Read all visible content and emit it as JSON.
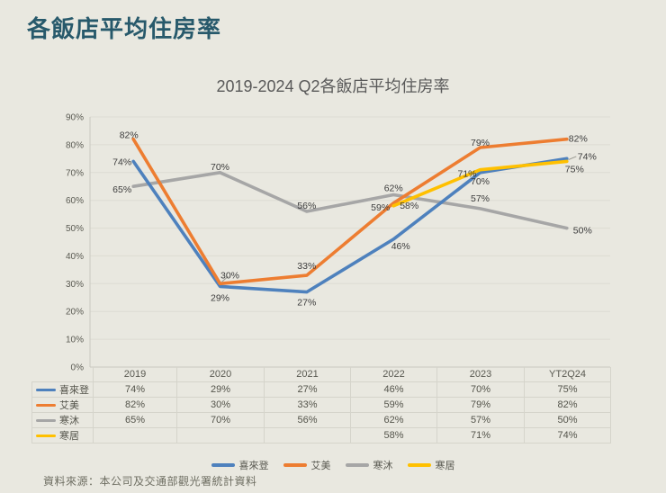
{
  "page": {
    "title": "各飯店平均住房率",
    "source": "資料來源：本公司及交通部觀光署統計資料"
  },
  "chart_data": {
    "type": "line",
    "title": "2019-2024 Q2各飯店平均住房率",
    "categories": [
      "2019",
      "2020",
      "2021",
      "2022",
      "2023",
      "YT2Q24"
    ],
    "series": [
      {
        "name": "喜來登",
        "color": "#4E81BD",
        "values": [
          74,
          29,
          27,
          46,
          70,
          75
        ]
      },
      {
        "name": "艾美",
        "color": "#ED7D31",
        "values": [
          82,
          30,
          33,
          59,
          79,
          82
        ]
      },
      {
        "name": "寒沐",
        "color": "#A6A6A6",
        "values": [
          65,
          70,
          56,
          62,
          57,
          50
        ]
      },
      {
        "name": "寒居",
        "color": "#FFC000",
        "values": [
          null,
          null,
          null,
          58,
          71,
          74
        ]
      }
    ],
    "ylim": [
      0,
      90
    ],
    "ytick_step": 10,
    "ytick_labels": [
      "0%",
      "10%",
      "20%",
      "30%",
      "40%",
      "50%",
      "60%",
      "70%",
      "80%",
      "90%"
    ],
    "grid": true,
    "legend_position": "bottom",
    "data_labels": true
  },
  "table": {
    "header": [
      "2019",
      "2020",
      "2021",
      "2022",
      "2023",
      "YT2Q24"
    ],
    "rows": [
      {
        "name": "喜來登",
        "color": "#4E81BD",
        "values": [
          "74%",
          "29%",
          "27%",
          "46%",
          "70%",
          "75%"
        ]
      },
      {
        "name": "艾美",
        "color": "#ED7D31",
        "values": [
          "82%",
          "30%",
          "33%",
          "59%",
          "79%",
          "82%"
        ]
      },
      {
        "name": "寒沐",
        "color": "#A6A6A6",
        "values": [
          "65%",
          "70%",
          "56%",
          "62%",
          "57%",
          "50%"
        ]
      },
      {
        "name": "寒居",
        "color": "#FFC000",
        "values": [
          "",
          "",
          "",
          "58%",
          "71%",
          "74%"
        ]
      }
    ]
  },
  "colors": {
    "background": "#E9E8E0",
    "title_text": "#27596B",
    "chart_text": "#595959",
    "grid_line": "#DDDCD3",
    "axis_line": "#C9C8BF",
    "table_border": "#D5D4CB"
  }
}
